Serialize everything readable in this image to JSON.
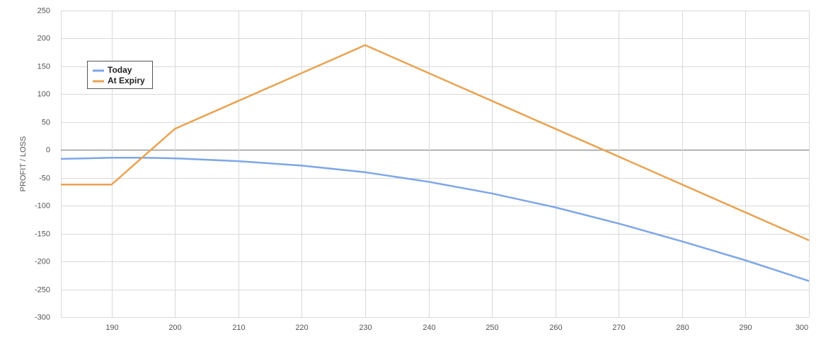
{
  "chart_data": {
    "type": "line",
    "y_label": "PROFIT / LOSS",
    "x": [
      182,
      190,
      195,
      200,
      210,
      220,
      230,
      240,
      250,
      260,
      270,
      280,
      290,
      300
    ],
    "series": [
      {
        "name": "Today",
        "color": "#7ea6e8",
        "values": [
          -16,
          -14,
          -14,
          -15,
          -20,
          -28,
          -40,
          -57,
          -78,
          -103,
          -132,
          -164,
          -198,
          -235
        ]
      },
      {
        "name": "At Expiry",
        "color": "#e8a352",
        "values": [
          -62,
          -62,
          -12,
          38,
          88,
          138,
          188,
          138,
          88,
          38,
          -12,
          -62,
          -112,
          -162
        ]
      }
    ],
    "xlim": [
      182,
      300
    ],
    "xticks": [
      190,
      200,
      210,
      220,
      230,
      240,
      250,
      260,
      270,
      280,
      290,
      300
    ],
    "ylim": [
      -300,
      250
    ],
    "yticks": [
      -300,
      -250,
      -200,
      -150,
      -100,
      -50,
      0,
      50,
      100,
      150,
      200,
      250
    ],
    "grid": true,
    "legend": "upper-left"
  }
}
